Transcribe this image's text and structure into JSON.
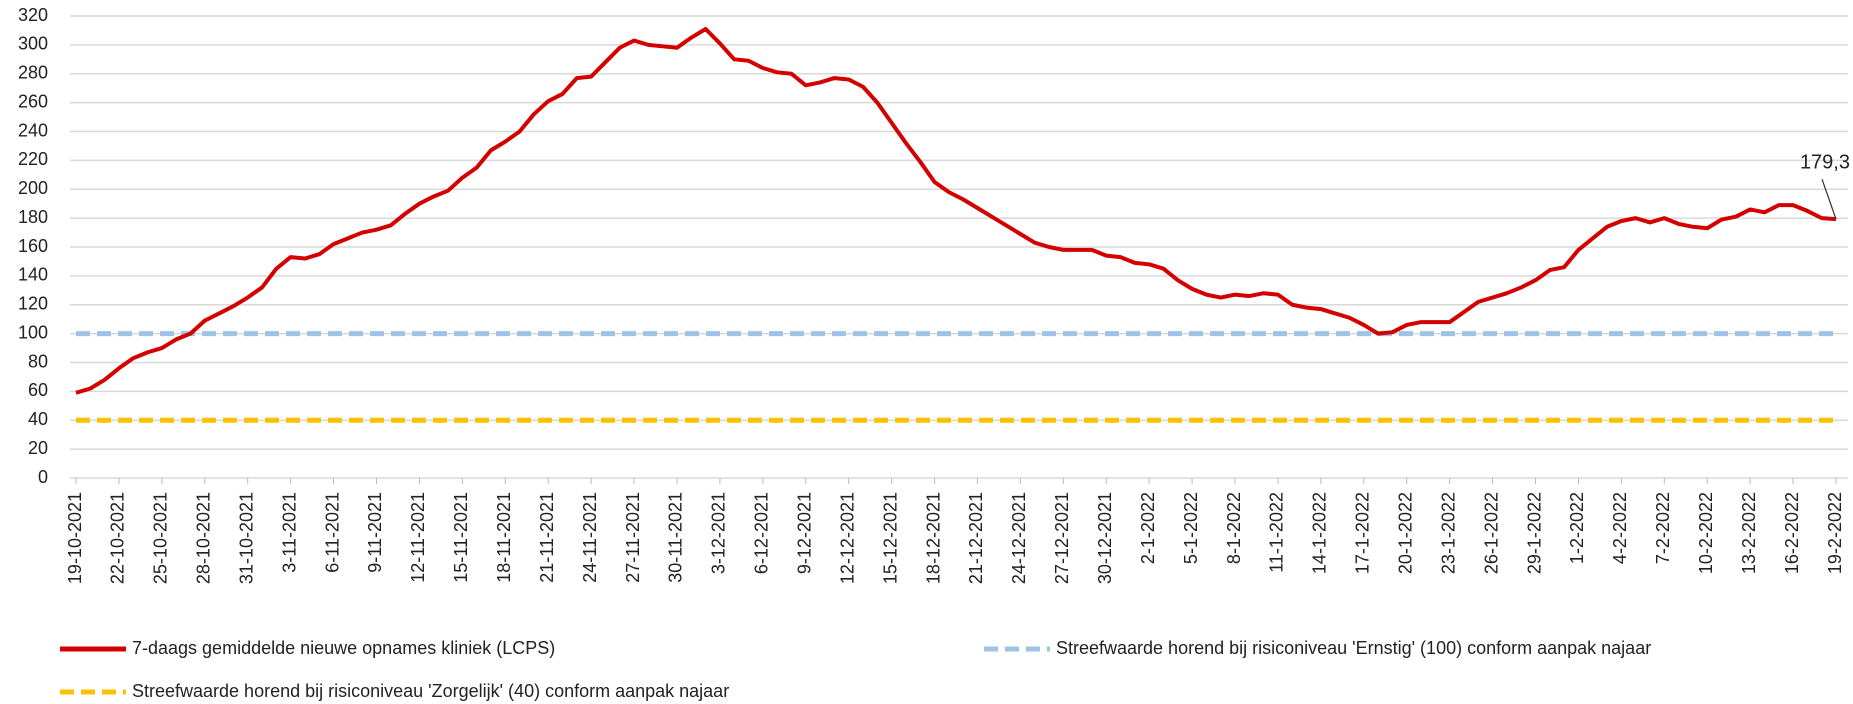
{
  "chart_data": {
    "type": "line",
    "categories": [
      "19-10-2021",
      null,
      null,
      "22-10-2021",
      null,
      null,
      "25-10-2021",
      null,
      null,
      "28-10-2021",
      null,
      null,
      "31-10-2021",
      null,
      null,
      "3-11-2021",
      null,
      null,
      "6-11-2021",
      null,
      null,
      "9-11-2021",
      null,
      null,
      "12-11-2021",
      null,
      null,
      "15-11-2021",
      null,
      null,
      "18-11-2021",
      null,
      null,
      "21-11-2021",
      null,
      null,
      "24-11-2021",
      null,
      null,
      "27-11-2021",
      null,
      null,
      "30-11-2021",
      null,
      null,
      "3-12-2021",
      null,
      null,
      "6-12-2021",
      null,
      null,
      "9-12-2021",
      null,
      null,
      "12-12-2021",
      null,
      null,
      "15-12-2021",
      null,
      null,
      "18-12-2021",
      null,
      null,
      "21-12-2021",
      null,
      null,
      "24-12-2021",
      null,
      null,
      "27-12-2021",
      null,
      null,
      "30-12-2021",
      null,
      null,
      "2-1-2022",
      null,
      null,
      "5-1-2022",
      null,
      null,
      "8-1-2022",
      null,
      null,
      "11-1-2022",
      null,
      null,
      "14-1-2022",
      null,
      null,
      "17-1-2022",
      null,
      null,
      "20-1-2022",
      null,
      null,
      "23-1-2022",
      null,
      null,
      "26-1-2022",
      null,
      null,
      "29-1-2022",
      null,
      null,
      "1-2-2022",
      null,
      null,
      "4-2-2022",
      null,
      null,
      "7-2-2022",
      null,
      null,
      "10-2-2022",
      null,
      null,
      "13-2-2022",
      null,
      null,
      "16-2-2022",
      null,
      null,
      "19-2-2022"
    ],
    "series": [
      {
        "name": "7-daags gemiddelde nieuwe opnames kliniek (LCPS)",
        "color": "#d40000",
        "values": [
          59,
          62,
          68,
          76,
          83,
          87,
          90,
          96,
          100,
          109,
          114,
          119,
          125,
          132,
          145,
          153,
          152,
          155,
          162,
          166,
          170,
          172,
          175,
          183,
          190,
          195,
          199,
          208,
          215,
          227,
          233,
          240,
          252,
          261,
          266,
          277,
          278,
          288,
          298,
          303,
          300,
          299,
          298,
          305,
          311,
          301,
          290,
          289,
          284,
          281,
          280,
          272,
          274,
          277,
          276,
          271,
          260,
          246,
          232,
          219,
          205,
          198,
          193,
          187,
          181,
          175,
          169,
          163,
          160,
          158,
          158,
          158,
          154,
          153,
          149,
          148,
          145,
          137,
          131,
          127,
          125,
          127,
          126,
          128,
          127,
          120,
          118,
          117,
          114,
          111,
          106,
          100,
          101,
          106,
          108,
          108,
          108,
          115,
          122,
          125,
          128,
          132,
          137,
          144,
          146,
          158,
          166,
          174,
          178,
          180,
          177,
          180,
          176,
          174,
          173,
          179,
          181,
          186,
          184,
          189,
          189,
          185,
          180,
          179.3
        ],
        "value_labels": [
          null,
          null,
          null,
          null,
          null,
          null,
          null,
          null,
          null,
          null,
          null,
          null,
          null,
          null,
          null,
          null,
          null,
          null,
          null,
          null,
          null,
          null,
          null,
          null,
          null,
          null,
          null,
          null,
          null,
          null,
          null,
          null,
          null,
          null,
          null,
          null,
          null,
          null,
          null,
          null,
          null,
          null,
          null,
          null,
          null,
          null,
          null,
          null,
          null,
          null,
          null,
          null,
          null,
          null,
          null,
          null,
          null,
          null,
          null,
          null,
          null,
          null,
          null,
          null,
          null,
          null,
          null,
          null,
          null,
          null,
          null,
          null,
          null,
          null,
          null,
          null,
          null,
          null,
          null,
          null,
          null,
          null,
          null,
          null,
          null,
          null,
          null,
          null,
          null,
          null,
          null,
          null,
          null,
          null,
          null,
          null,
          null,
          null,
          null,
          null,
          null,
          null,
          null,
          null,
          null,
          null,
          null,
          null,
          null,
          null,
          null,
          null,
          null,
          null,
          null,
          null,
          null,
          null,
          null,
          null,
          null,
          null,
          null,
          "179,3"
        ]
      }
    ],
    "reference_lines": [
      {
        "name": "Streefwaarde horend bij risiconiveau 'Ernstig' (100) conform aanpak najaar",
        "value": 100,
        "color": "#9dc3e6",
        "dashed": true
      },
      {
        "name": "Streefwaarde horend bij risiconiveau 'Zorgelijk' (40) conform aanpak najaar",
        "value": 40,
        "color": "#ffc000",
        "dashed": true
      }
    ],
    "ylim": [
      0,
      320
    ],
    "yticks": [
      0,
      20,
      40,
      60,
      80,
      100,
      120,
      140,
      160,
      180,
      200,
      220,
      240,
      260,
      280,
      300,
      320
    ],
    "grid": true
  }
}
